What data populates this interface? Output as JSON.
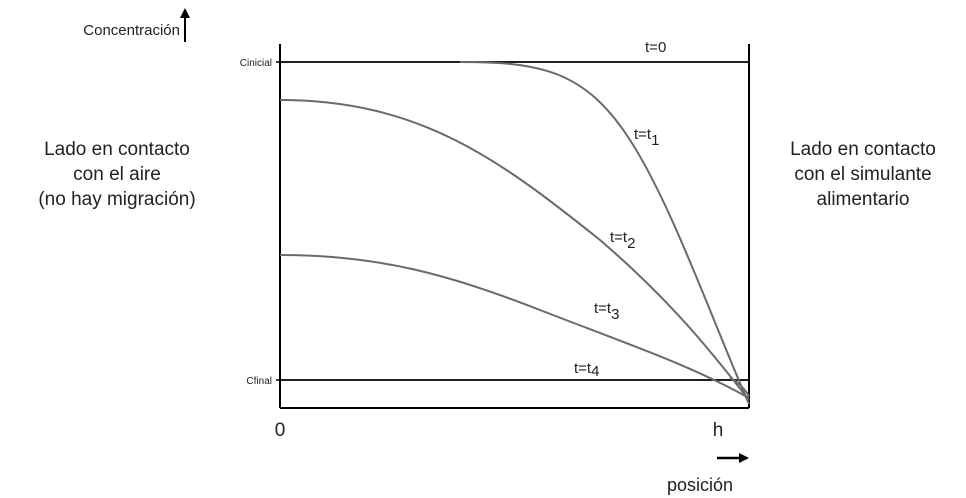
{
  "colors": {
    "axis": "#000000",
    "curve": "#6a6a6a",
    "text": "#222222"
  },
  "diagram": {
    "y_axis_label": "Concentración",
    "x_axis_label": "posición",
    "x_origin_label": "0",
    "x_end_label": "h",
    "c_initial_label": "Cinicial",
    "c_final_label": "Cfinal",
    "left_side": {
      "line1": "Lado en contacto",
      "line2": "con el aire",
      "line3": "(no hay migración)"
    },
    "right_side": {
      "line1": "Lado en contacto",
      "line2": "con el simulante",
      "line3": "alimentario"
    },
    "curves": [
      {
        "label_base": "t=",
        "label_main": "0",
        "label_sub": ""
      },
      {
        "label_base": "t=t",
        "label_main": "",
        "label_sub": "1"
      },
      {
        "label_base": "t=t",
        "label_main": "",
        "label_sub": "2"
      },
      {
        "label_base": "t=t",
        "label_main": "",
        "label_sub": "3"
      },
      {
        "label_base": "t=t",
        "label_main": "",
        "label_sub": "4"
      }
    ]
  }
}
